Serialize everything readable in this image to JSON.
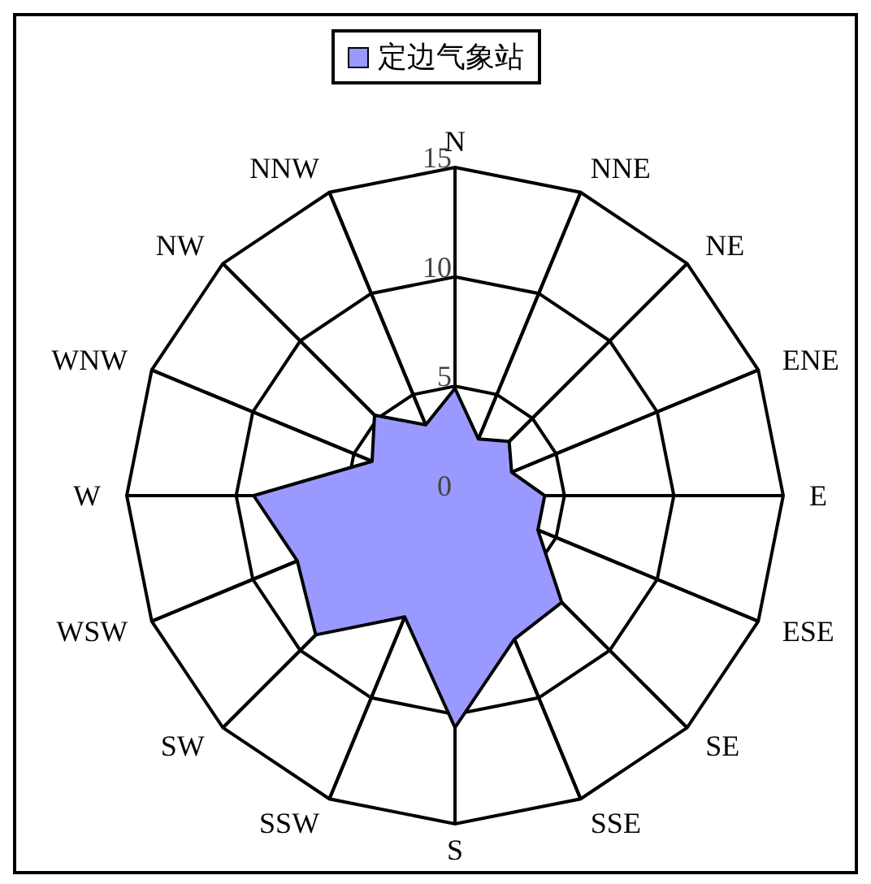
{
  "chart_data": {
    "type": "radar",
    "categories": [
      "N",
      "NNE",
      "NE",
      "ENE",
      "E",
      "ESE",
      "SE",
      "SSE",
      "S",
      "SSW",
      "SW",
      "WSW",
      "W",
      "WNW",
      "NW",
      "NNW"
    ],
    "series": [
      {
        "name": "定边气象站",
        "color": "#9999ff",
        "values": [
          4.9,
          2.8,
          3.5,
          2.8,
          4.1,
          4.1,
          6.9,
          7.1,
          10.6,
          6.0,
          9.0,
          7.8,
          9.2,
          4.1,
          5.2,
          3.5
        ]
      }
    ],
    "ylim": [
      0,
      15
    ],
    "yticks": [
      0,
      5,
      10,
      15
    ],
    "grid": true,
    "legend": "top"
  }
}
